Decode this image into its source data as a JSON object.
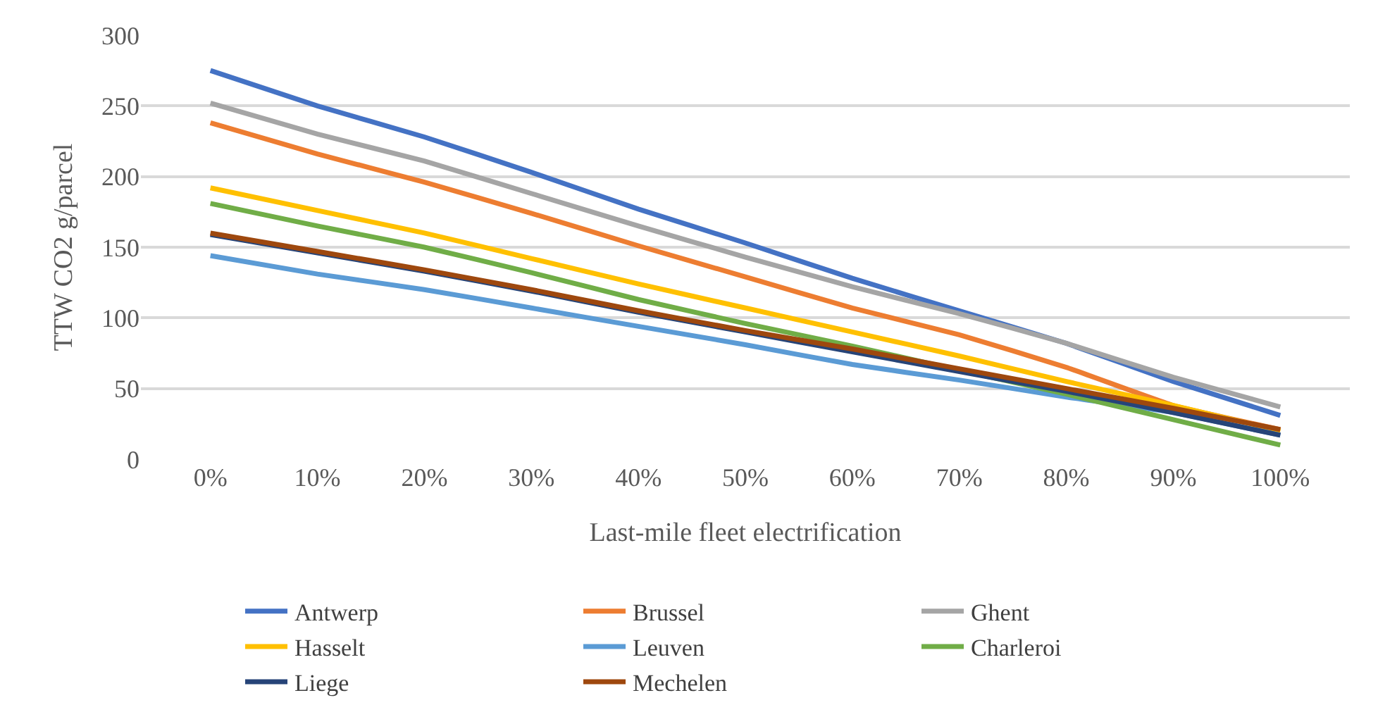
{
  "chart_data": {
    "type": "line",
    "xlabel": "Last-mile fleet electrification",
    "ylabel": "TTW CO2 g/parcel",
    "categories": [
      "0%",
      "10%",
      "20%",
      "30%",
      "40%",
      "50%",
      "60%",
      "70%",
      "80%",
      "90%",
      "100%"
    ],
    "series": [
      {
        "name": "Antwerp",
        "color": "#4472c4",
        "values": [
          275,
          250,
          228,
          203,
          177,
          153,
          128,
          105,
          82,
          55,
          31
        ]
      },
      {
        "name": "Brussel",
        "color": "#ed7d31",
        "values": [
          238,
          216,
          196,
          174,
          151,
          129,
          107,
          88,
          65,
          38,
          21
        ]
      },
      {
        "name": "Ghent",
        "color": "#a5a5a5",
        "values": [
          252,
          230,
          211,
          188,
          165,
          143,
          122,
          103,
          82,
          58,
          37
        ]
      },
      {
        "name": "Hasselt",
        "color": "#ffc000",
        "values": [
          192,
          176,
          160,
          142,
          124,
          107,
          90,
          73,
          55,
          38,
          20
        ]
      },
      {
        "name": "Leuven",
        "color": "#5b9bd5",
        "values": [
          144,
          131,
          120,
          107,
          94,
          81,
          67,
          56,
          44,
          33,
          17
        ]
      },
      {
        "name": "Charleroi",
        "color": "#70ad47",
        "values": [
          181,
          165,
          150,
          132,
          113,
          96,
          80,
          63,
          46,
          28,
          10
        ]
      },
      {
        "name": "Liege",
        "color": "#264478",
        "values": [
          159,
          146,
          133,
          119,
          104,
          90,
          76,
          62,
          48,
          33,
          17
        ]
      },
      {
        "name": "Mechelen",
        "color": "#9e480e",
        "values": [
          160,
          147,
          134,
          120,
          105,
          91,
          78,
          64,
          50,
          36,
          21
        ]
      }
    ],
    "ylim": [
      0,
      300
    ],
    "yticks": [
      0,
      50,
      100,
      150,
      200,
      250,
      300
    ],
    "grid": "y",
    "legend": "bottom",
    "marker": "none",
    "line_style": "solid"
  }
}
